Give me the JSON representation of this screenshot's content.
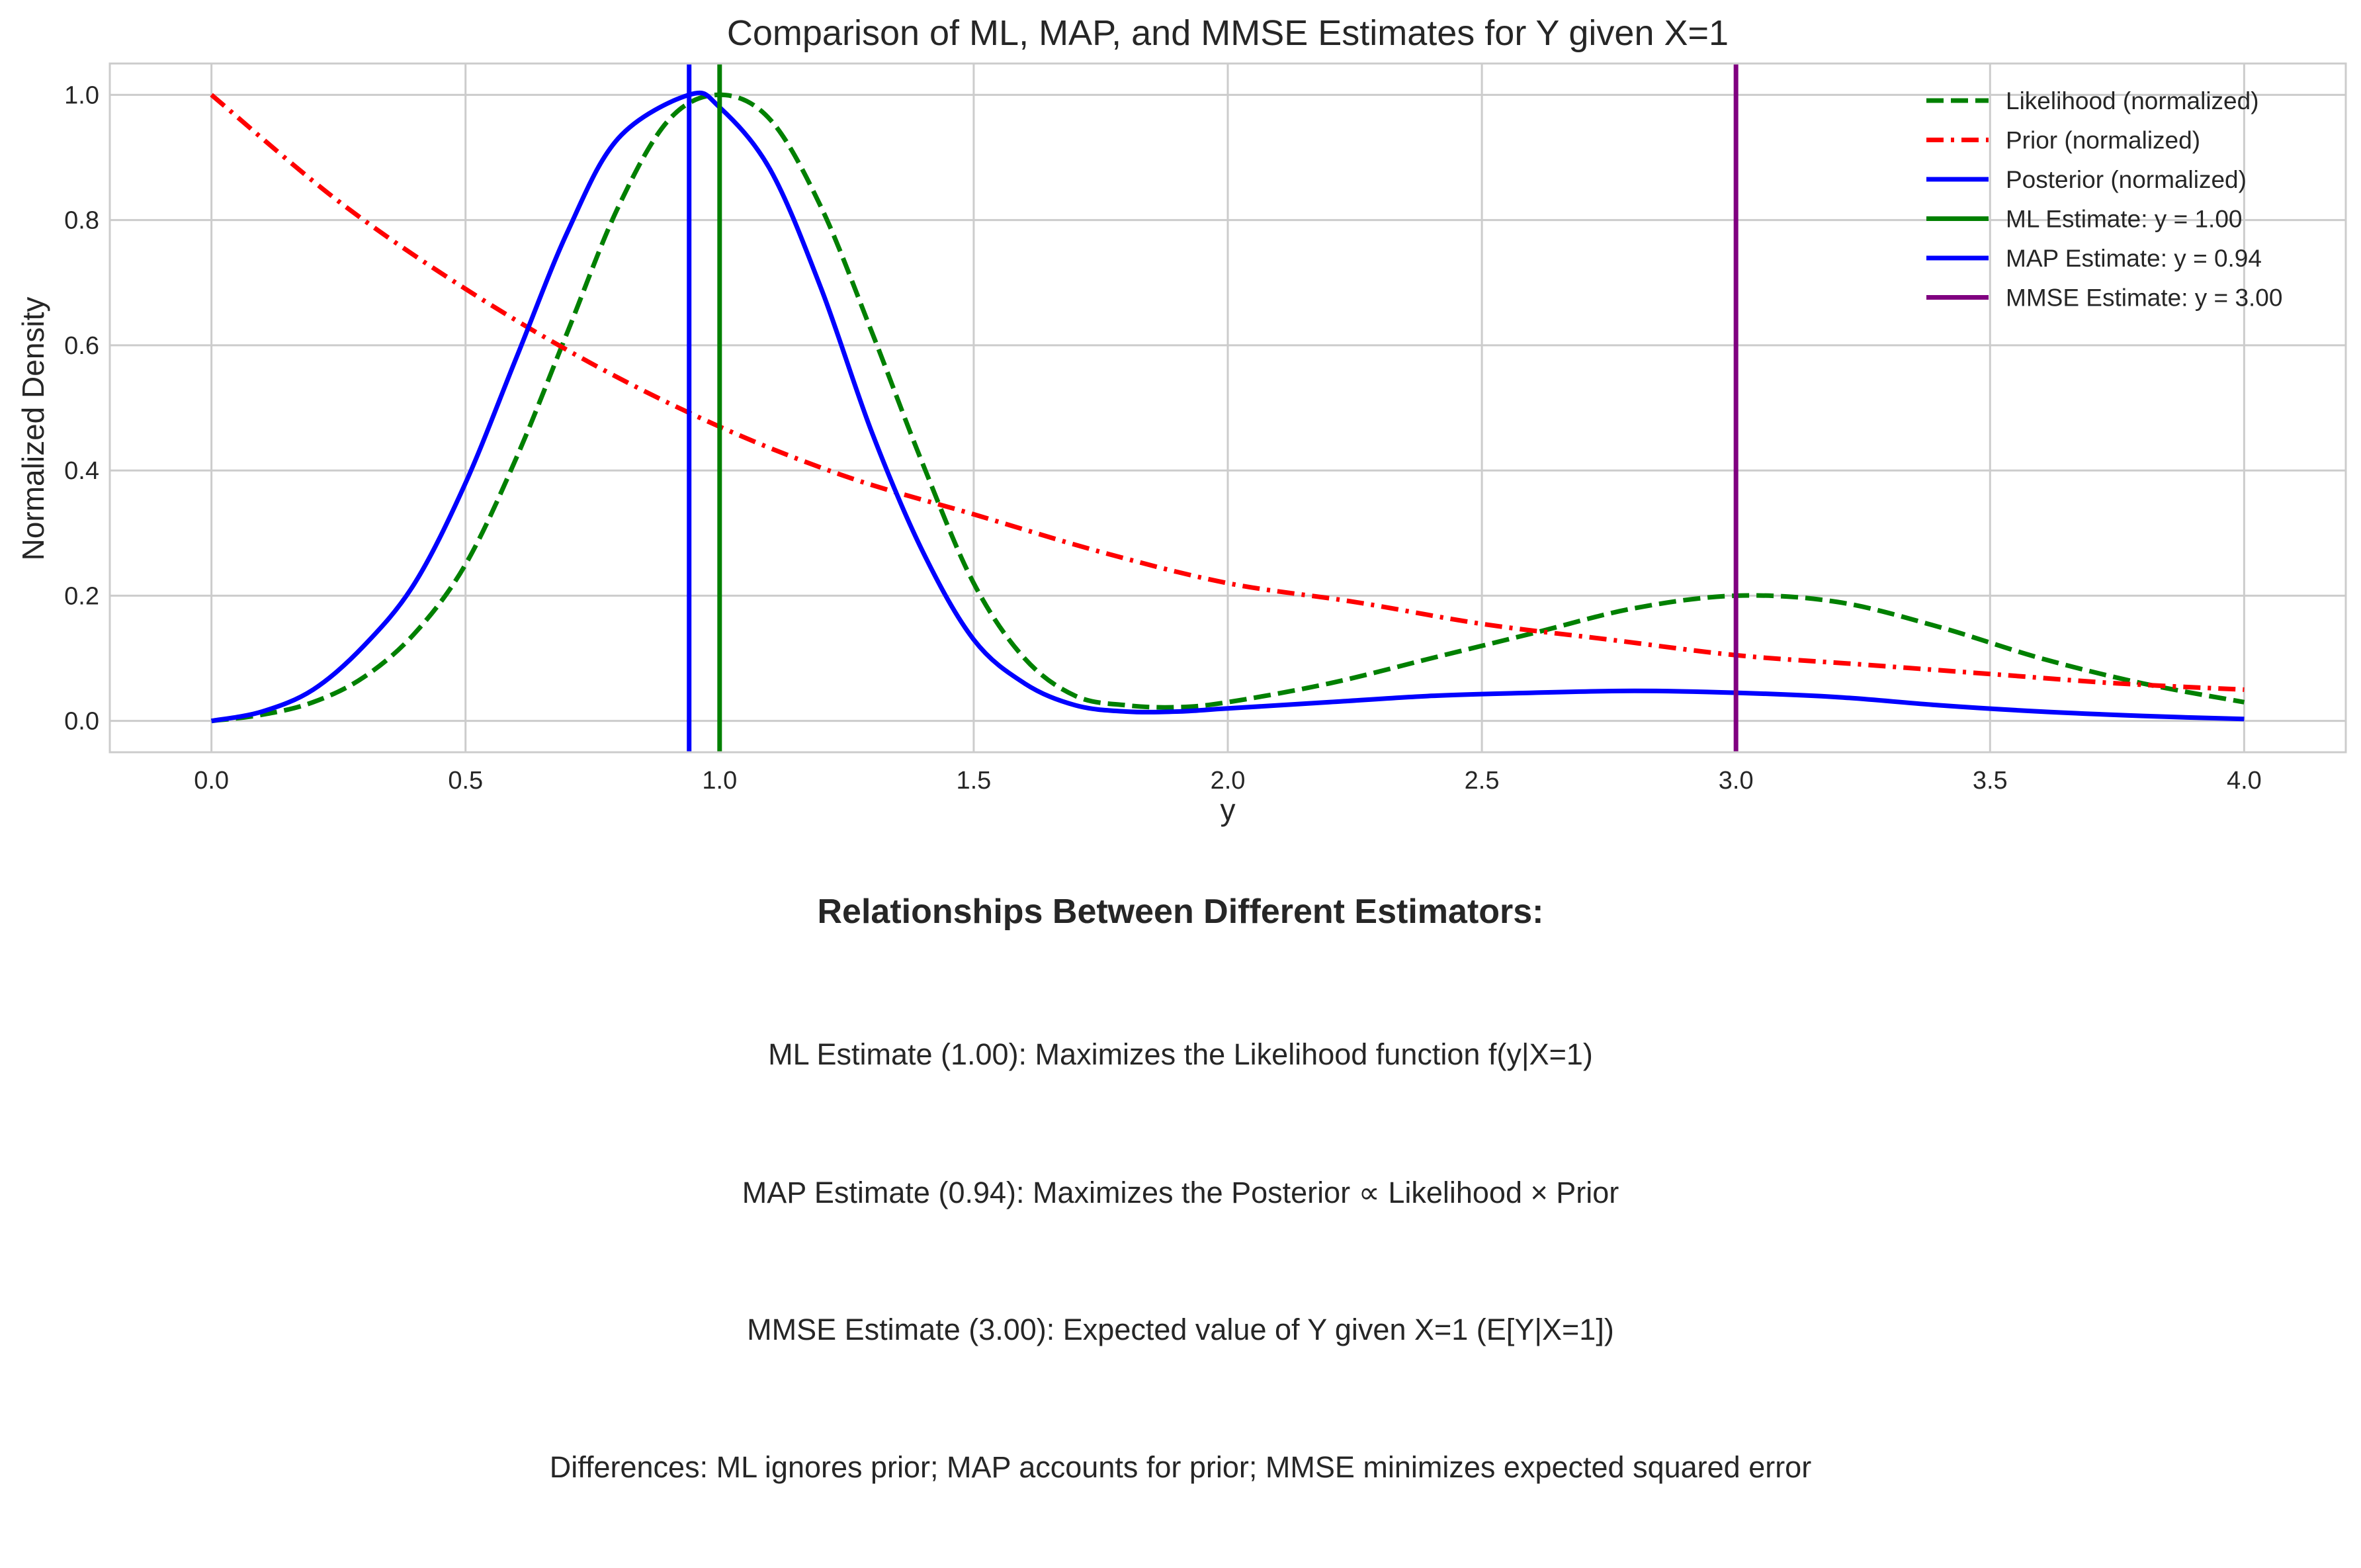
{
  "chart_data": {
    "type": "line",
    "title": "Comparison of ML, MAP, and MMSE Estimates for Y given X=1",
    "xlabel": "y",
    "ylabel": "Normalized Density",
    "xlim": [
      -0.2,
      4.2
    ],
    "ylim": [
      -0.05,
      1.05
    ],
    "xticks": [
      0.0,
      0.5,
      1.0,
      1.5,
      2.0,
      2.5,
      3.0,
      3.5,
      4.0
    ],
    "xtick_labels": [
      "0.0",
      "0.5",
      "1.0",
      "1.5",
      "2.0",
      "2.5",
      "3.0",
      "3.5",
      "4.0"
    ],
    "yticks": [
      0.0,
      0.2,
      0.4,
      0.6,
      0.8,
      1.0
    ],
    "ytick_labels": [
      "0.0",
      "0.2",
      "0.4",
      "0.6",
      "0.8",
      "1.0"
    ],
    "grid": true,
    "legend_position": "top-right",
    "series": [
      {
        "name": "Likelihood (normalized)",
        "color": "#008000",
        "style": "dashed",
        "x": [
          0.0,
          0.1,
          0.2,
          0.3,
          0.4,
          0.5,
          0.6,
          0.7,
          0.8,
          0.9,
          1.0,
          1.1,
          1.2,
          1.3,
          1.4,
          1.5,
          1.6,
          1.7,
          1.8,
          1.9,
          2.0,
          2.2,
          2.4,
          2.6,
          2.8,
          3.0,
          3.2,
          3.4,
          3.6,
          3.8,
          4.0
        ],
        "y": [
          0.0,
          0.01,
          0.03,
          0.07,
          0.14,
          0.25,
          0.42,
          0.62,
          0.82,
          0.96,
          1.0,
          0.96,
          0.82,
          0.62,
          0.41,
          0.22,
          0.1,
          0.04,
          0.025,
          0.022,
          0.03,
          0.06,
          0.1,
          0.14,
          0.18,
          0.2,
          0.19,
          0.15,
          0.1,
          0.06,
          0.03
        ]
      },
      {
        "name": "Prior (normalized)",
        "color": "#ff0000",
        "style": "dashdot",
        "x": [
          0.0,
          0.25,
          0.5,
          0.75,
          1.0,
          1.25,
          1.5,
          1.75,
          2.0,
          2.25,
          2.5,
          2.75,
          3.0,
          3.25,
          3.5,
          3.75,
          4.0
        ],
        "y": [
          1.0,
          0.83,
          0.69,
          0.57,
          0.47,
          0.39,
          0.33,
          0.27,
          0.22,
          0.19,
          0.155,
          0.13,
          0.105,
          0.09,
          0.075,
          0.06,
          0.05
        ]
      },
      {
        "name": "Posterior (normalized)",
        "color": "#0000ff",
        "style": "solid",
        "x": [
          0.0,
          0.1,
          0.2,
          0.3,
          0.4,
          0.5,
          0.6,
          0.7,
          0.8,
          0.94,
          1.0,
          1.1,
          1.2,
          1.3,
          1.4,
          1.5,
          1.6,
          1.7,
          1.8,
          1.9,
          2.0,
          2.2,
          2.4,
          2.6,
          2.8,
          3.0,
          3.2,
          3.4,
          3.6,
          3.8,
          4.0
        ],
        "y": [
          0.0,
          0.015,
          0.05,
          0.12,
          0.22,
          0.38,
          0.58,
          0.78,
          0.93,
          1.0,
          0.98,
          0.88,
          0.69,
          0.46,
          0.27,
          0.13,
          0.06,
          0.025,
          0.015,
          0.015,
          0.02,
          0.03,
          0.04,
          0.045,
          0.048,
          0.045,
          0.038,
          0.025,
          0.015,
          0.008,
          0.003
        ]
      }
    ],
    "vlines": [
      {
        "name": "ML Estimate: y = 1.00",
        "x": 1.0,
        "color": "#008000"
      },
      {
        "name": "MAP Estimate: y = 0.94",
        "x": 0.94,
        "color": "#0000ff"
      },
      {
        "name": "MMSE Estimate: y = 3.00",
        "x": 3.0,
        "color": "#800080"
      }
    ]
  },
  "notes": {
    "title": "Relationships Between Different Estimators:",
    "lines": [
      "ML Estimate (1.00): Maximizes the Likelihood function f(y|X=1)",
      "MAP Estimate (0.94): Maximizes the Posterior ∝ Likelihood × Prior",
      "MMSE Estimate (3.00): Expected value of Y given X=1 (E[Y|X=1])",
      "Differences: ML ignores prior; MAP accounts for prior; MMSE minimizes expected squared error"
    ]
  }
}
